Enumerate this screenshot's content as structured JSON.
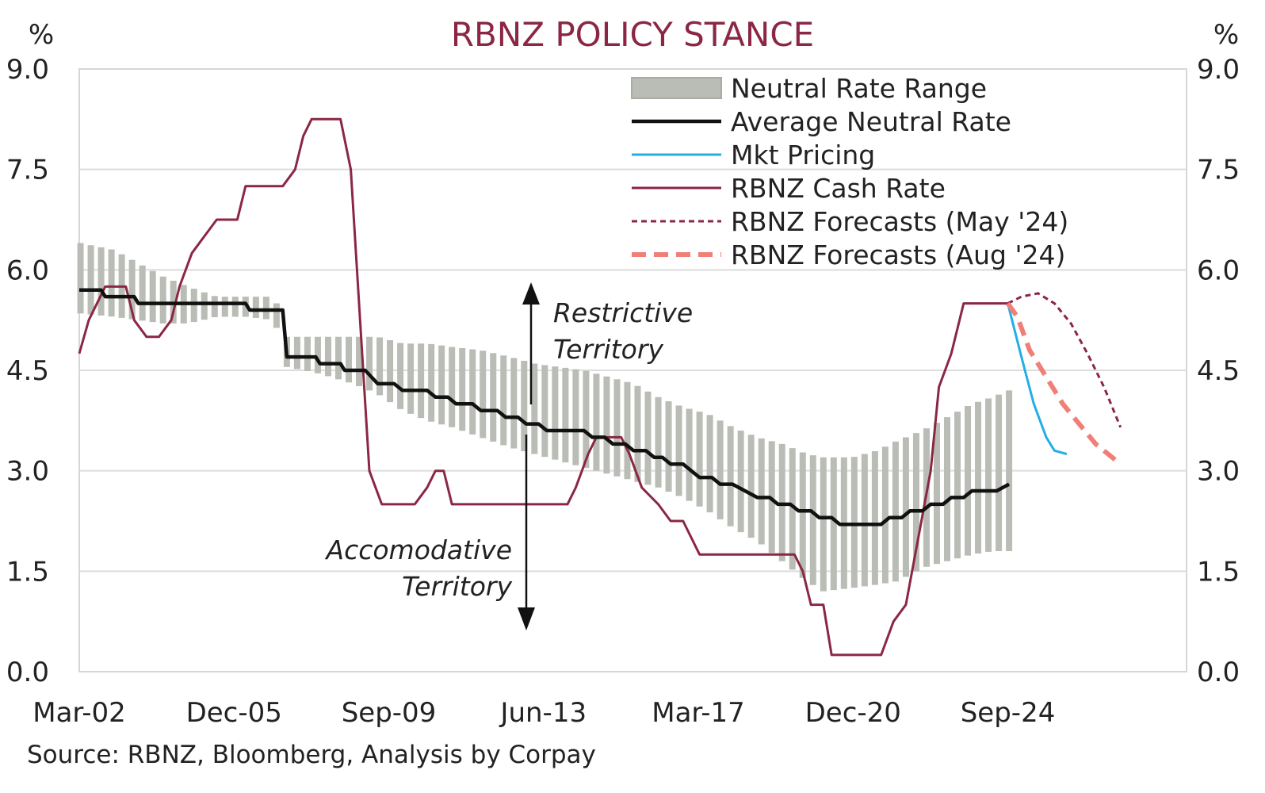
{
  "chart_data": {
    "type": "line",
    "title": "RBNZ POLICY STANCE",
    "y_unit_left": "%",
    "y_unit_right": "%",
    "ylim": [
      0,
      9
    ],
    "y_ticks": [
      "0.0",
      "1.5",
      "3.0",
      "4.5",
      "6.0",
      "7.5",
      "9.0"
    ],
    "xlim": [
      2002.17,
      2029.0
    ],
    "x_ticks": [
      {
        "label": "Mar-02",
        "x": 2002.17
      },
      {
        "label": "Dec-05",
        "x": 2005.92
      },
      {
        "label": "Sep-09",
        "x": 2009.67
      },
      {
        "label": "Jun-13",
        "x": 2013.42
      },
      {
        "label": "Mar-17",
        "x": 2017.17
      },
      {
        "label": "Dec-20",
        "x": 2020.92
      },
      {
        "label": "Sep-24",
        "x": 2024.67
      }
    ],
    "grid": true,
    "legend_position": "top-right",
    "series": [
      {
        "name": "Neutral Rate Range",
        "kind": "band",
        "color": "#b9bdb5",
        "points": [
          [
            2002.2,
            6.4,
            5.35
          ],
          [
            2003.0,
            6.3,
            5.3
          ],
          [
            2003.6,
            6.1,
            5.25
          ],
          [
            2004.2,
            5.9,
            5.2
          ],
          [
            2004.8,
            5.75,
            5.2
          ],
          [
            2005.5,
            5.6,
            5.3
          ],
          [
            2006.2,
            5.6,
            5.3
          ],
          [
            2006.9,
            5.6,
            5.25
          ],
          [
            2007.2,
            5.0,
            4.55
          ],
          [
            2008.0,
            5.0,
            4.45
          ],
          [
            2008.8,
            5.0,
            4.3
          ],
          [
            2009.4,
            5.0,
            4.15
          ],
          [
            2010.0,
            4.9,
            3.9
          ],
          [
            2010.6,
            4.9,
            3.75
          ],
          [
            2011.2,
            4.85,
            3.65
          ],
          [
            2011.9,
            4.8,
            3.5
          ],
          [
            2012.6,
            4.7,
            3.35
          ],
          [
            2013.2,
            4.6,
            3.25
          ],
          [
            2013.8,
            4.55,
            3.15
          ],
          [
            2014.4,
            4.5,
            3.05
          ],
          [
            2015.0,
            4.4,
            2.95
          ],
          [
            2015.6,
            4.3,
            2.85
          ],
          [
            2016.2,
            4.1,
            2.75
          ],
          [
            2016.8,
            3.95,
            2.6
          ],
          [
            2017.4,
            3.85,
            2.4
          ],
          [
            2018.0,
            3.65,
            2.15
          ],
          [
            2018.6,
            3.5,
            1.95
          ],
          [
            2019.2,
            3.4,
            1.65
          ],
          [
            2019.8,
            3.25,
            1.35
          ],
          [
            2020.2,
            3.2,
            1.2
          ],
          [
            2020.9,
            3.2,
            1.25
          ],
          [
            2021.5,
            3.3,
            1.3
          ],
          [
            2022.0,
            3.45,
            1.35
          ],
          [
            2022.6,
            3.6,
            1.55
          ],
          [
            2023.2,
            3.8,
            1.65
          ],
          [
            2023.8,
            4.0,
            1.75
          ],
          [
            2024.3,
            4.1,
            1.8
          ],
          [
            2024.7,
            4.2,
            1.8
          ]
        ]
      },
      {
        "name": "Average Neutral Rate",
        "kind": "line",
        "color": "#111111",
        "points": [
          [
            2002.17,
            5.7
          ],
          [
            2002.7,
            5.7
          ],
          [
            2002.8,
            5.6
          ],
          [
            2003.5,
            5.6
          ],
          [
            2003.6,
            5.5
          ],
          [
            2006.2,
            5.5
          ],
          [
            2006.3,
            5.4
          ],
          [
            2007.1,
            5.4
          ],
          [
            2007.2,
            4.7
          ],
          [
            2007.9,
            4.7
          ],
          [
            2008.0,
            4.6
          ],
          [
            2008.5,
            4.6
          ],
          [
            2008.6,
            4.5
          ],
          [
            2009.1,
            4.5
          ],
          [
            2009.4,
            4.3
          ],
          [
            2009.8,
            4.3
          ],
          [
            2010.0,
            4.2
          ],
          [
            2010.6,
            4.2
          ],
          [
            2010.8,
            4.1
          ],
          [
            2011.1,
            4.1
          ],
          [
            2011.3,
            4.0
          ],
          [
            2011.7,
            4.0
          ],
          [
            2011.9,
            3.9
          ],
          [
            2012.3,
            3.9
          ],
          [
            2012.5,
            3.8
          ],
          [
            2012.8,
            3.8
          ],
          [
            2013.0,
            3.7
          ],
          [
            2013.3,
            3.7
          ],
          [
            2013.5,
            3.6
          ],
          [
            2014.4,
            3.6
          ],
          [
            2014.6,
            3.5
          ],
          [
            2014.9,
            3.5
          ],
          [
            2015.1,
            3.4
          ],
          [
            2015.4,
            3.4
          ],
          [
            2015.6,
            3.3
          ],
          [
            2015.9,
            3.3
          ],
          [
            2016.1,
            3.2
          ],
          [
            2016.3,
            3.2
          ],
          [
            2016.5,
            3.1
          ],
          [
            2016.8,
            3.1
          ],
          [
            2017.0,
            3.0
          ],
          [
            2017.2,
            2.9
          ],
          [
            2017.5,
            2.9
          ],
          [
            2017.7,
            2.8
          ],
          [
            2018.0,
            2.8
          ],
          [
            2018.3,
            2.7
          ],
          [
            2018.6,
            2.6
          ],
          [
            2018.9,
            2.6
          ],
          [
            2019.1,
            2.5
          ],
          [
            2019.4,
            2.5
          ],
          [
            2019.6,
            2.4
          ],
          [
            2019.9,
            2.4
          ],
          [
            2020.1,
            2.3
          ],
          [
            2020.4,
            2.3
          ],
          [
            2020.6,
            2.2
          ],
          [
            2021.6,
            2.2
          ],
          [
            2021.8,
            2.3
          ],
          [
            2022.1,
            2.3
          ],
          [
            2022.3,
            2.4
          ],
          [
            2022.6,
            2.4
          ],
          [
            2022.8,
            2.5
          ],
          [
            2023.1,
            2.5
          ],
          [
            2023.3,
            2.6
          ],
          [
            2023.6,
            2.6
          ],
          [
            2023.8,
            2.7
          ],
          [
            2024.4,
            2.7
          ],
          [
            2024.7,
            2.8
          ]
        ]
      },
      {
        "name": "Mkt Pricing",
        "kind": "line",
        "color": "#23aee5",
        "points": [
          [
            2024.67,
            5.5
          ],
          [
            2025.0,
            4.7
          ],
          [
            2025.3,
            4.0
          ],
          [
            2025.6,
            3.5
          ],
          [
            2025.8,
            3.3
          ],
          [
            2026.1,
            3.25
          ]
        ]
      },
      {
        "name": "RBNZ Cash Rate",
        "kind": "line",
        "color": "#8b2744",
        "points": [
          [
            2002.17,
            4.75
          ],
          [
            2002.4,
            5.25
          ],
          [
            2002.6,
            5.5
          ],
          [
            2002.8,
            5.75
          ],
          [
            2003.3,
            5.75
          ],
          [
            2003.5,
            5.25
          ],
          [
            2003.8,
            5.0
          ],
          [
            2004.1,
            5.0
          ],
          [
            2004.4,
            5.25
          ],
          [
            2004.6,
            5.75
          ],
          [
            2004.9,
            6.25
          ],
          [
            2005.5,
            6.75
          ],
          [
            2006.0,
            6.75
          ],
          [
            2006.2,
            7.25
          ],
          [
            2007.1,
            7.25
          ],
          [
            2007.4,
            7.5
          ],
          [
            2007.6,
            8.0
          ],
          [
            2007.8,
            8.25
          ],
          [
            2008.5,
            8.25
          ],
          [
            2008.75,
            7.5
          ],
          [
            2009.0,
            5.0
          ],
          [
            2009.2,
            3.0
          ],
          [
            2009.5,
            2.5
          ],
          [
            2010.3,
            2.5
          ],
          [
            2010.6,
            2.75
          ],
          [
            2010.8,
            3.0
          ],
          [
            2011.0,
            3.0
          ],
          [
            2011.2,
            2.5
          ],
          [
            2014.0,
            2.5
          ],
          [
            2014.2,
            2.75
          ],
          [
            2014.5,
            3.25
          ],
          [
            2014.7,
            3.5
          ],
          [
            2015.3,
            3.5
          ],
          [
            2015.5,
            3.25
          ],
          [
            2015.8,
            2.75
          ],
          [
            2016.2,
            2.5
          ],
          [
            2016.5,
            2.25
          ],
          [
            2016.8,
            2.25
          ],
          [
            2017.2,
            1.75
          ],
          [
            2019.5,
            1.75
          ],
          [
            2019.7,
            1.5
          ],
          [
            2019.9,
            1.0
          ],
          [
            2020.2,
            1.0
          ],
          [
            2020.4,
            0.25
          ],
          [
            2021.6,
            0.25
          ],
          [
            2021.9,
            0.75
          ],
          [
            2022.2,
            1.0
          ],
          [
            2022.5,
            2.0
          ],
          [
            2022.8,
            3.0
          ],
          [
            2023.0,
            4.25
          ],
          [
            2023.3,
            4.75
          ],
          [
            2023.6,
            5.5
          ],
          [
            2024.67,
            5.5
          ]
        ]
      },
      {
        "name": "RBNZ Forecasts (May '24)",
        "kind": "line",
        "dash": "short",
        "color": "#8b2744",
        "points": [
          [
            2024.67,
            5.5
          ],
          [
            2025.0,
            5.6
          ],
          [
            2025.4,
            5.65
          ],
          [
            2025.8,
            5.5
          ],
          [
            2026.2,
            5.2
          ],
          [
            2026.6,
            4.75
          ],
          [
            2027.0,
            4.25
          ],
          [
            2027.4,
            3.65
          ]
        ]
      },
      {
        "name": "RBNZ Forecasts (Aug '24)",
        "kind": "line",
        "dash": "long",
        "color": "#f07f78",
        "points": [
          [
            2024.67,
            5.5
          ],
          [
            2024.9,
            5.3
          ],
          [
            2025.2,
            4.8
          ],
          [
            2025.6,
            4.4
          ],
          [
            2026.0,
            4.0
          ],
          [
            2026.4,
            3.7
          ],
          [
            2026.8,
            3.4
          ],
          [
            2027.2,
            3.2
          ],
          [
            2027.4,
            3.1
          ]
        ]
      }
    ],
    "annotations": {
      "restrictive": [
        "Restrictive",
        "Territory"
      ],
      "accommodative": [
        "Accomodative",
        "Territory"
      ]
    },
    "source": "Source: RBNZ, Bloomberg, Analysis by Corpay"
  }
}
